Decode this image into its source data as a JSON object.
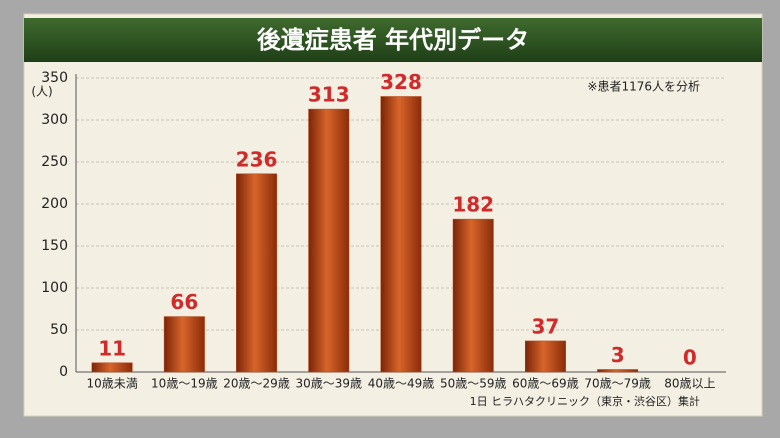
{
  "chart_data": {
    "type": "bar",
    "title": "後遺症患者 年代別データ",
    "y_unit": "(人)",
    "note": "※患者1176人を分析",
    "source": "1日 ヒラハタクリニック（東京・渋谷区）集計",
    "categories": [
      "10歳未満",
      "10歳～19歳",
      "20歳～29歳",
      "30歳～39歳",
      "40歳～49歳",
      "50歳～59歳",
      "60歳～69歳",
      "70歳～79歳",
      "80歳以上"
    ],
    "values": [
      11,
      66,
      236,
      313,
      328,
      182,
      37,
      3,
      0
    ],
    "color": "#b8461a",
    "ylim": [
      0,
      350
    ],
    "yticks": [
      0,
      50,
      100,
      150,
      200,
      250,
      300,
      350
    ],
    "grid": true
  }
}
